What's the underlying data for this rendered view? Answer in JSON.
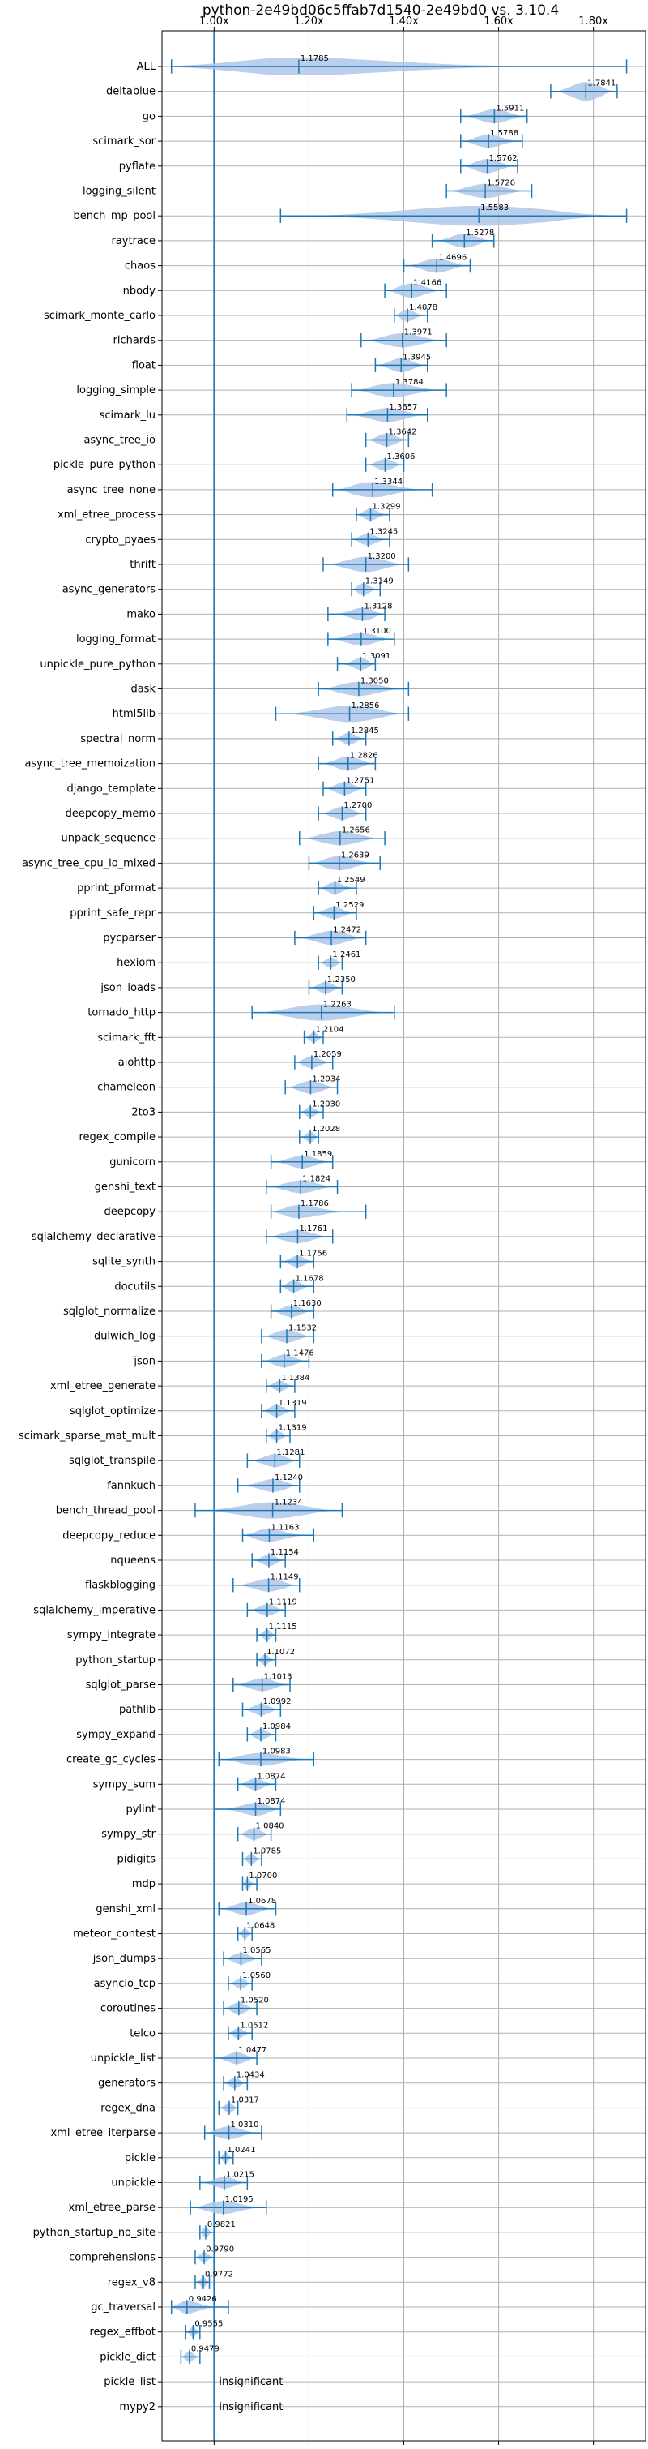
{
  "chart_data": {
    "type": "violin",
    "title": "python-2e49bd06c5ffab7d1540-2e49bd0 vs. 3.10.4",
    "xlabel": "",
    "ylabel": "",
    "xlim": [
      0.89,
      1.91
    ],
    "x_ticks": [
      1.0,
      1.2,
      1.4,
      1.6,
      1.8
    ],
    "x_tick_labels": [
      "1.00x",
      "1.20x",
      "1.40x",
      "1.60x",
      "1.80x"
    ],
    "reference_line": 1.0,
    "grid": true,
    "colors": {
      "violin": "#aec7e8",
      "line": "#1f77b4",
      "grid": "#b0b0b0"
    },
    "benchmarks": [
      {
        "name": "ALL",
        "median": 1.1785,
        "label": "1.1785",
        "min": 0.91,
        "max": 1.87,
        "width": 0.75
      },
      {
        "name": "deltablue",
        "median": 1.7841,
        "label": "1.7841",
        "min": 1.71,
        "max": 1.85,
        "width": 0.8
      },
      {
        "name": "go",
        "median": 1.5911,
        "label": "1.5911",
        "min": 1.52,
        "max": 1.66,
        "width": 0.6
      },
      {
        "name": "scimark_sor",
        "median": 1.5788,
        "label": "1.5788",
        "min": 1.52,
        "max": 1.65,
        "width": 0.55
      },
      {
        "name": "pyflate",
        "median": 1.5762,
        "label": "1.5762",
        "min": 1.52,
        "max": 1.64,
        "width": 0.6
      },
      {
        "name": "logging_silent",
        "median": 1.572,
        "label": "1.5720",
        "min": 1.49,
        "max": 1.67,
        "width": 0.6
      },
      {
        "name": "bench_mp_pool",
        "median": 1.5583,
        "label": "1.5583",
        "min": 1.14,
        "max": 1.87,
        "width": 0.85
      },
      {
        "name": "raytrace",
        "median": 1.5278,
        "label": "1.5278",
        "min": 1.46,
        "max": 1.59,
        "width": 0.6
      },
      {
        "name": "chaos",
        "median": 1.4696,
        "label": "1.4696",
        "min": 1.4,
        "max": 1.54,
        "width": 0.6
      },
      {
        "name": "nbody",
        "median": 1.4166,
        "label": "1.4166",
        "min": 1.36,
        "max": 1.49,
        "width": 0.6
      },
      {
        "name": "scimark_monte_carlo",
        "median": 1.4078,
        "label": "1.4078",
        "min": 1.38,
        "max": 1.45,
        "width": 0.5
      },
      {
        "name": "richards",
        "median": 1.3971,
        "label": "1.3971",
        "min": 1.31,
        "max": 1.49,
        "width": 0.6
      },
      {
        "name": "float",
        "median": 1.3945,
        "label": "1.3945",
        "min": 1.34,
        "max": 1.45,
        "width": 0.6
      },
      {
        "name": "logging_simple",
        "median": 1.3784,
        "label": "1.3784",
        "min": 1.29,
        "max": 1.49,
        "width": 0.6
      },
      {
        "name": "scimark_lu",
        "median": 1.3657,
        "label": "1.3657",
        "min": 1.28,
        "max": 1.45,
        "width": 0.6
      },
      {
        "name": "async_tree_io",
        "median": 1.3642,
        "label": "1.3642",
        "min": 1.32,
        "max": 1.41,
        "width": 0.55
      },
      {
        "name": "pickle_pure_python",
        "median": 1.3606,
        "label": "1.3606",
        "min": 1.32,
        "max": 1.4,
        "width": 0.5
      },
      {
        "name": "async_tree_none",
        "median": 1.3344,
        "label": "1.3344",
        "min": 1.25,
        "max": 1.46,
        "width": 0.65
      },
      {
        "name": "xml_etree_process",
        "median": 1.3299,
        "label": "1.3299",
        "min": 1.3,
        "max": 1.37,
        "width": 0.5
      },
      {
        "name": "crypto_pyaes",
        "median": 1.3245,
        "label": "1.3245",
        "min": 1.29,
        "max": 1.37,
        "width": 0.5
      },
      {
        "name": "thrift",
        "median": 1.32,
        "label": "1.3200",
        "min": 1.23,
        "max": 1.41,
        "width": 0.65
      },
      {
        "name": "async_generators",
        "median": 1.3149,
        "label": "1.3149",
        "min": 1.29,
        "max": 1.35,
        "width": 0.5
      },
      {
        "name": "mako",
        "median": 1.3128,
        "label": "1.3128",
        "min": 1.24,
        "max": 1.36,
        "width": 0.55
      },
      {
        "name": "logging_format",
        "median": 1.31,
        "label": "1.3100",
        "min": 1.24,
        "max": 1.38,
        "width": 0.55
      },
      {
        "name": "unpickle_pure_python",
        "median": 1.3091,
        "label": "1.3091",
        "min": 1.26,
        "max": 1.34,
        "width": 0.5
      },
      {
        "name": "dask",
        "median": 1.305,
        "label": "1.3050",
        "min": 1.22,
        "max": 1.41,
        "width": 0.6
      },
      {
        "name": "html5lib",
        "median": 1.2856,
        "label": "1.2856",
        "min": 1.13,
        "max": 1.41,
        "width": 0.7
      },
      {
        "name": "spectral_norm",
        "median": 1.2845,
        "label": "1.2845",
        "min": 1.25,
        "max": 1.32,
        "width": 0.5
      },
      {
        "name": "async_tree_memoization",
        "median": 1.2826,
        "label": "1.2826",
        "min": 1.22,
        "max": 1.34,
        "width": 0.6
      },
      {
        "name": "django_template",
        "median": 1.2751,
        "label": "1.2751",
        "min": 1.23,
        "max": 1.32,
        "width": 0.55
      },
      {
        "name": "deepcopy_memo",
        "median": 1.27,
        "label": "1.2700",
        "min": 1.22,
        "max": 1.32,
        "width": 0.55
      },
      {
        "name": "unpack_sequence",
        "median": 1.2656,
        "label": "1.2656",
        "min": 1.18,
        "max": 1.36,
        "width": 0.6
      },
      {
        "name": "async_tree_cpu_io_mixed",
        "median": 1.2639,
        "label": "1.2639",
        "min": 1.2,
        "max": 1.35,
        "width": 0.6
      },
      {
        "name": "pprint_pformat",
        "median": 1.2549,
        "label": "1.2549",
        "min": 1.22,
        "max": 1.3,
        "width": 0.5
      },
      {
        "name": "pprint_safe_repr",
        "median": 1.2529,
        "label": "1.2529",
        "min": 1.21,
        "max": 1.3,
        "width": 0.5
      },
      {
        "name": "pycparser",
        "median": 1.2472,
        "label": "1.2472",
        "min": 1.17,
        "max": 1.32,
        "width": 0.6
      },
      {
        "name": "hexiom",
        "median": 1.2461,
        "label": "1.2461",
        "min": 1.22,
        "max": 1.27,
        "width": 0.45
      },
      {
        "name": "json_loads",
        "median": 1.235,
        "label": "1.2350",
        "min": 1.2,
        "max": 1.27,
        "width": 0.5
      },
      {
        "name": "tornado_http",
        "median": 1.2263,
        "label": "1.2263",
        "min": 1.08,
        "max": 1.38,
        "width": 0.7
      },
      {
        "name": "scimark_fft",
        "median": 1.2104,
        "label": "1.2104",
        "min": 1.19,
        "max": 1.23,
        "width": 0.45
      },
      {
        "name": "aiohttp",
        "median": 1.2059,
        "label": "1.2059",
        "min": 1.17,
        "max": 1.25,
        "width": 0.5
      },
      {
        "name": "chameleon",
        "median": 1.2034,
        "label": "1.2034",
        "min": 1.15,
        "max": 1.26,
        "width": 0.55
      },
      {
        "name": "2to3",
        "median": 1.203,
        "label": "1.2030",
        "min": 1.18,
        "max": 1.23,
        "width": 0.45
      },
      {
        "name": "regex_compile",
        "median": 1.2028,
        "label": "1.2028",
        "min": 1.18,
        "max": 1.22,
        "width": 0.45
      },
      {
        "name": "gunicorn",
        "median": 1.1859,
        "label": "1.1859",
        "min": 1.12,
        "max": 1.25,
        "width": 0.55
      },
      {
        "name": "genshi_text",
        "median": 1.1824,
        "label": "1.1824",
        "min": 1.11,
        "max": 1.26,
        "width": 0.55
      },
      {
        "name": "deepcopy",
        "median": 1.1786,
        "label": "1.1786",
        "min": 1.12,
        "max": 1.32,
        "width": 0.55
      },
      {
        "name": "sqlalchemy_declarative",
        "median": 1.1761,
        "label": "1.1761",
        "min": 1.11,
        "max": 1.25,
        "width": 0.55
      },
      {
        "name": "sqlite_synth",
        "median": 1.1756,
        "label": "1.1756",
        "min": 1.14,
        "max": 1.21,
        "width": 0.5
      },
      {
        "name": "docutils",
        "median": 1.1678,
        "label": "1.1678",
        "min": 1.14,
        "max": 1.21,
        "width": 0.5
      },
      {
        "name": "sqlglot_normalize",
        "median": 1.163,
        "label": "1.1630",
        "min": 1.12,
        "max": 1.21,
        "width": 0.5
      },
      {
        "name": "dulwich_log",
        "median": 1.1532,
        "label": "1.1532",
        "min": 1.1,
        "max": 1.21,
        "width": 0.55
      },
      {
        "name": "json",
        "median": 1.1476,
        "label": "1.1476",
        "min": 1.1,
        "max": 1.2,
        "width": 0.55
      },
      {
        "name": "xml_etree_generate",
        "median": 1.1384,
        "label": "1.1384",
        "min": 1.11,
        "max": 1.17,
        "width": 0.45
      },
      {
        "name": "sqlglot_optimize",
        "median": 1.1319,
        "label": "1.1319",
        "min": 1.1,
        "max": 1.17,
        "width": 0.5
      },
      {
        "name": "scimark_sparse_mat_mult",
        "median": 1.1319,
        "label": "1.1319",
        "min": 1.11,
        "max": 1.16,
        "width": 0.45
      },
      {
        "name": "sqlglot_transpile",
        "median": 1.1281,
        "label": "1.1281",
        "min": 1.07,
        "max": 1.18,
        "width": 0.55
      },
      {
        "name": "fannkuch",
        "median": 1.124,
        "label": "1.1240",
        "min": 1.05,
        "max": 1.18,
        "width": 0.55
      },
      {
        "name": "bench_thread_pool",
        "median": 1.1234,
        "label": "1.1234",
        "min": 0.96,
        "max": 1.27,
        "width": 0.7
      },
      {
        "name": "deepcopy_reduce",
        "median": 1.1163,
        "label": "1.1163",
        "min": 1.06,
        "max": 1.21,
        "width": 0.55
      },
      {
        "name": "nqueens",
        "median": 1.1154,
        "label": "1.1154",
        "min": 1.08,
        "max": 1.15,
        "width": 0.5
      },
      {
        "name": "flaskblogging",
        "median": 1.1149,
        "label": "1.1149",
        "min": 1.04,
        "max": 1.18,
        "width": 0.55
      },
      {
        "name": "sqlalchemy_imperative",
        "median": 1.1119,
        "label": "1.1119",
        "min": 1.07,
        "max": 1.15,
        "width": 0.5
      },
      {
        "name": "sympy_integrate",
        "median": 1.1115,
        "label": "1.1115",
        "min": 1.09,
        "max": 1.13,
        "width": 0.45
      },
      {
        "name": "python_startup",
        "median": 1.1072,
        "label": "1.1072",
        "min": 1.09,
        "max": 1.13,
        "width": 0.45
      },
      {
        "name": "sqlglot_parse",
        "median": 1.1013,
        "label": "1.1013",
        "min": 1.04,
        "max": 1.16,
        "width": 0.55
      },
      {
        "name": "pathlib",
        "median": 1.0992,
        "label": "1.0992",
        "min": 1.06,
        "max": 1.14,
        "width": 0.5
      },
      {
        "name": "sympy_expand",
        "median": 1.0984,
        "label": "1.0984",
        "min": 1.07,
        "max": 1.13,
        "width": 0.5
      },
      {
        "name": "create_gc_cycles",
        "median": 1.0983,
        "label": "1.0983",
        "min": 1.01,
        "max": 1.21,
        "width": 0.55
      },
      {
        "name": "sympy_sum",
        "median": 1.0874,
        "label": "1.0874",
        "min": 1.05,
        "max": 1.13,
        "width": 0.5
      },
      {
        "name": "pylint",
        "median": 1.0874,
        "label": "1.0874",
        "min": 1.0,
        "max": 1.14,
        "width": 0.55
      },
      {
        "name": "sympy_str",
        "median": 1.084,
        "label": "1.0840",
        "min": 1.05,
        "max": 1.12,
        "width": 0.5
      },
      {
        "name": "pidigits",
        "median": 1.0785,
        "label": "1.0785",
        "min": 1.06,
        "max": 1.1,
        "width": 0.45
      },
      {
        "name": "mdp",
        "median": 1.07,
        "label": "1.0700",
        "min": 1.06,
        "max": 1.09,
        "width": 0.45
      },
      {
        "name": "genshi_xml",
        "median": 1.0678,
        "label": "1.0678",
        "min": 1.01,
        "max": 1.13,
        "width": 0.55
      },
      {
        "name": "meteor_contest",
        "median": 1.0648,
        "label": "1.0648",
        "min": 1.05,
        "max": 1.08,
        "width": 0.45
      },
      {
        "name": "json_dumps",
        "median": 1.0565,
        "label": "1.0565",
        "min": 1.02,
        "max": 1.1,
        "width": 0.5
      },
      {
        "name": "asyncio_tcp",
        "median": 1.056,
        "label": "1.0560",
        "min": 1.03,
        "max": 1.08,
        "width": 0.45
      },
      {
        "name": "coroutines",
        "median": 1.052,
        "label": "1.0520",
        "min": 1.02,
        "max": 1.09,
        "width": 0.5
      },
      {
        "name": "telco",
        "median": 1.0512,
        "label": "1.0512",
        "min": 1.03,
        "max": 1.08,
        "width": 0.45
      },
      {
        "name": "unpickle_list",
        "median": 1.0477,
        "label": "1.0477",
        "min": 1.0,
        "max": 1.09,
        "width": 0.5
      },
      {
        "name": "generators",
        "median": 1.0434,
        "label": "1.0434",
        "min": 1.02,
        "max": 1.07,
        "width": 0.45
      },
      {
        "name": "regex_dna",
        "median": 1.0317,
        "label": "1.0317",
        "min": 1.01,
        "max": 1.05,
        "width": 0.45
      },
      {
        "name": "xml_etree_iterparse",
        "median": 1.031,
        "label": "1.0310",
        "min": 0.98,
        "max": 1.1,
        "width": 0.55
      },
      {
        "name": "pickle",
        "median": 1.0241,
        "label": "1.0241",
        "min": 1.01,
        "max": 1.04,
        "width": 0.45
      },
      {
        "name": "unpickle",
        "median": 1.0215,
        "label": "1.0215",
        "min": 0.97,
        "max": 1.07,
        "width": 0.5
      },
      {
        "name": "xml_etree_parse",
        "median": 1.0195,
        "label": "1.0195",
        "min": 0.95,
        "max": 1.11,
        "width": 0.55
      },
      {
        "name": "python_startup_no_site",
        "median": 0.9821,
        "label": "0.9821",
        "min": 0.97,
        "max": 1.0,
        "width": 0.45
      },
      {
        "name": "comprehensions",
        "median": 0.979,
        "label": "0.9790",
        "min": 0.96,
        "max": 1.0,
        "width": 0.45
      },
      {
        "name": "regex_v8",
        "median": 0.9772,
        "label": "0.9772",
        "min": 0.96,
        "max": 0.99,
        "width": 0.45
      },
      {
        "name": "gc_traversal",
        "median": 0.9426,
        "label": "0.9426",
        "min": 0.91,
        "max": 1.03,
        "width": 0.55
      },
      {
        "name": "regex_effbot",
        "median": 0.9555,
        "label": "0.9555",
        "min": 0.94,
        "max": 0.97,
        "width": 0.45
      },
      {
        "name": "pickle_dict",
        "median": 0.9479,
        "label": "0.9479",
        "min": 0.93,
        "max": 0.97,
        "width": 0.45
      },
      {
        "name": "pickle_list",
        "annotation": "insignificant"
      },
      {
        "name": "mypy2",
        "annotation": "insignificant"
      }
    ]
  }
}
